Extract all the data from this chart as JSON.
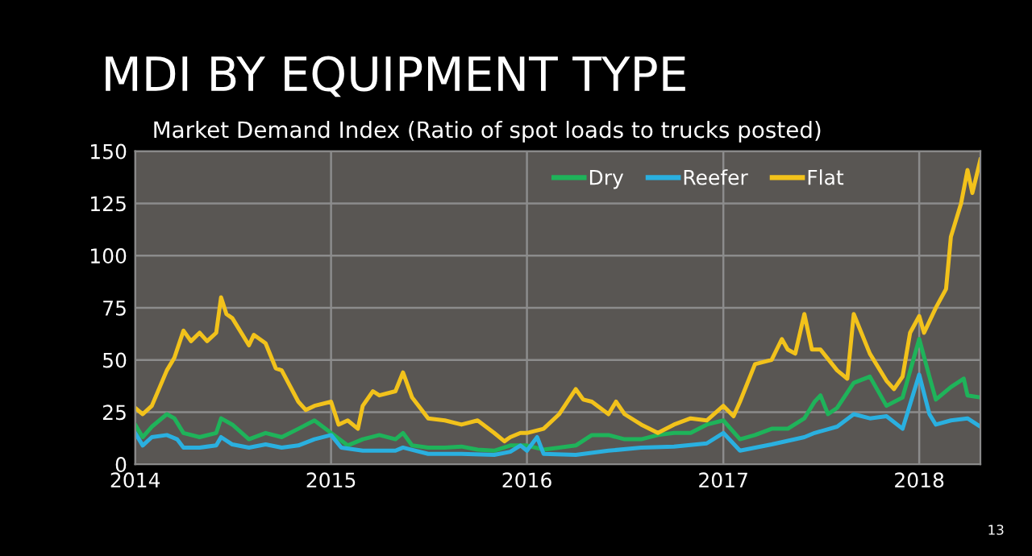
{
  "chart_data": {
    "type": "line",
    "title": "MDI BY EQUIPMENT TYPE",
    "subtitle": "Market Demand Index (Ratio of spot loads to trucks posted)",
    "annotations": [
      "13"
    ],
    "xlim": [
      "2014-01-01",
      "2018-04-25"
    ],
    "xticks": [
      {
        "value": "2014-01-01",
        "label": "2014"
      },
      {
        "value": "2015-01-01",
        "label": "2015"
      },
      {
        "value": "2016-01-01",
        "label": "2016"
      },
      {
        "value": "2017-01-01",
        "label": "2017"
      },
      {
        "value": "2018-01-01",
        "label": "2018"
      }
    ],
    "ylim": [
      0,
      150
    ],
    "yticks": [
      0,
      25,
      50,
      75,
      100,
      125,
      150
    ],
    "grid": true,
    "legend": "top right",
    "marker": "none",
    "line_style": "solid",
    "series": [
      {
        "name": "Dry",
        "color": "#1fb35a",
        "x": [
          "2014-01-01",
          "2014-01-15",
          "2014-02-01",
          "2014-03-01",
          "2014-03-15",
          "2014-04-01",
          "2014-05-01",
          "2014-06-01",
          "2014-06-10",
          "2014-07-01",
          "2014-08-01",
          "2014-09-01",
          "2014-10-01",
          "2014-11-01",
          "2014-12-01",
          "2015-01-01",
          "2015-02-01",
          "2015-03-01",
          "2015-04-01",
          "2015-05-01",
          "2015-05-15",
          "2015-06-01",
          "2015-07-01",
          "2015-08-01",
          "2015-09-01",
          "2015-10-01",
          "2015-11-01",
          "2015-12-01",
          "2016-01-01",
          "2016-02-01",
          "2016-03-01",
          "2016-04-01",
          "2016-05-01",
          "2016-06-01",
          "2016-07-01",
          "2016-08-01",
          "2016-09-01",
          "2016-10-01",
          "2016-11-01",
          "2016-12-01",
          "2017-01-01",
          "2017-02-01",
          "2017-03-01",
          "2017-04-01",
          "2017-05-01",
          "2017-06-01",
          "2017-06-20",
          "2017-07-01",
          "2017-07-15",
          "2017-08-01",
          "2017-09-01",
          "2017-10-01",
          "2017-11-01",
          "2017-12-01",
          "2018-01-01",
          "2018-01-20",
          "2018-02-01",
          "2018-03-01",
          "2018-03-25",
          "2018-04-01",
          "2018-04-25"
        ],
        "values": [
          19,
          13,
          18,
          24,
          22,
          15,
          13,
          15,
          22,
          19,
          12,
          15,
          13,
          17,
          21,
          15,
          9,
          12,
          14,
          12,
          15,
          9,
          8,
          8,
          8.5,
          7,
          6.5,
          9,
          9,
          7,
          8,
          9,
          14,
          14,
          12,
          12,
          14,
          15,
          15,
          19,
          21,
          12,
          14,
          17,
          17,
          22,
          30,
          33,
          24,
          27,
          39,
          42,
          28,
          32,
          60,
          42,
          31,
          37,
          41,
          33,
          32
        ]
      },
      {
        "name": "Reefer",
        "color": "#2ab0e0",
        "x": [
          "2014-01-01",
          "2014-01-15",
          "2014-02-01",
          "2014-03-01",
          "2014-03-20",
          "2014-04-01",
          "2014-05-01",
          "2014-06-01",
          "2014-06-10",
          "2014-07-01",
          "2014-08-01",
          "2014-09-01",
          "2014-10-01",
          "2014-11-01",
          "2014-12-01",
          "2015-01-01",
          "2015-01-20",
          "2015-03-01",
          "2015-05-01",
          "2015-05-15",
          "2015-07-01",
          "2015-09-01",
          "2015-11-01",
          "2015-12-01",
          "2015-12-20",
          "2016-01-01",
          "2016-01-20",
          "2016-02-01",
          "2016-04-01",
          "2016-06-01",
          "2016-08-01",
          "2016-10-01",
          "2016-12-01",
          "2017-01-01",
          "2017-02-01",
          "2017-04-01",
          "2017-06-01",
          "2017-06-20",
          "2017-08-01",
          "2017-09-01",
          "2017-10-01",
          "2017-11-01",
          "2017-12-01",
          "2018-01-01",
          "2018-01-20",
          "2018-02-01",
          "2018-03-01",
          "2018-04-01",
          "2018-04-25"
        ],
        "values": [
          15,
          9,
          13,
          14,
          12,
          8,
          8,
          9,
          13,
          9.5,
          8,
          9.5,
          8,
          9,
          12,
          14,
          8,
          6.5,
          6.5,
          8,
          5,
          5,
          4.5,
          6,
          9,
          6.5,
          13,
          5,
          4.5,
          6.5,
          8,
          8.5,
          10,
          15,
          6.5,
          9.5,
          13,
          15,
          18,
          24,
          22,
          23,
          17,
          43,
          24,
          19,
          21,
          22,
          18
        ]
      },
      {
        "name": "Flat",
        "color": "#f2c21b",
        "x": [
          "2014-01-01",
          "2014-01-15",
          "2014-02-01",
          "2014-03-01",
          "2014-03-15",
          "2014-04-01",
          "2014-04-15",
          "2014-05-01",
          "2014-05-15",
          "2014-06-01",
          "2014-06-10",
          "2014-06-20",
          "2014-07-01",
          "2014-08-01",
          "2014-08-10",
          "2014-09-01",
          "2014-09-20",
          "2014-10-01",
          "2014-11-01",
          "2014-11-15",
          "2014-12-01",
          "2015-01-01",
          "2015-01-15",
          "2015-02-01",
          "2015-02-20",
          "2015-03-01",
          "2015-03-20",
          "2015-04-01",
          "2015-05-01",
          "2015-05-15",
          "2015-06-01",
          "2015-07-01",
          "2015-08-01",
          "2015-09-01",
          "2015-10-01",
          "2015-11-01",
          "2015-11-20",
          "2015-12-01",
          "2015-12-20",
          "2016-01-01",
          "2016-02-01",
          "2016-03-01",
          "2016-04-01",
          "2016-04-15",
          "2016-05-01",
          "2016-06-01",
          "2016-06-15",
          "2016-07-01",
          "2016-08-01",
          "2016-09-01",
          "2016-10-01",
          "2016-11-01",
          "2016-12-01",
          "2017-01-01",
          "2017-01-20",
          "2017-02-01",
          "2017-03-01",
          "2017-04-01",
          "2017-04-20",
          "2017-05-01",
          "2017-05-15",
          "2017-06-01",
          "2017-06-15",
          "2017-07-01",
          "2017-08-01",
          "2017-08-20",
          "2017-09-01",
          "2017-10-01",
          "2017-11-01",
          "2017-11-15",
          "2017-12-01",
          "2017-12-15",
          "2018-01-01",
          "2018-01-10",
          "2018-02-01",
          "2018-02-20",
          "2018-03-01",
          "2018-03-20",
          "2018-04-01",
          "2018-04-10",
          "2018-04-25"
        ],
        "values": [
          27,
          24,
          28,
          45,
          51,
          64,
          59,
          63,
          59,
          63,
          80,
          72,
          70,
          57,
          62,
          58,
          46,
          45,
          30,
          26,
          28,
          30,
          19,
          21,
          17,
          28,
          35,
          33,
          35,
          44,
          32,
          22,
          21,
          19,
          21,
          15,
          11,
          13,
          15,
          15,
          17,
          24,
          36,
          31,
          30,
          24,
          30,
          24,
          19,
          15,
          19,
          22,
          21,
          28,
          23,
          30,
          48,
          50,
          60,
          55,
          53,
          72,
          55,
          55,
          45,
          41,
          72,
          53,
          40,
          36,
          42,
          63,
          71,
          63,
          75,
          84,
          109,
          125,
          141,
          130,
          146
        ]
      }
    ]
  }
}
